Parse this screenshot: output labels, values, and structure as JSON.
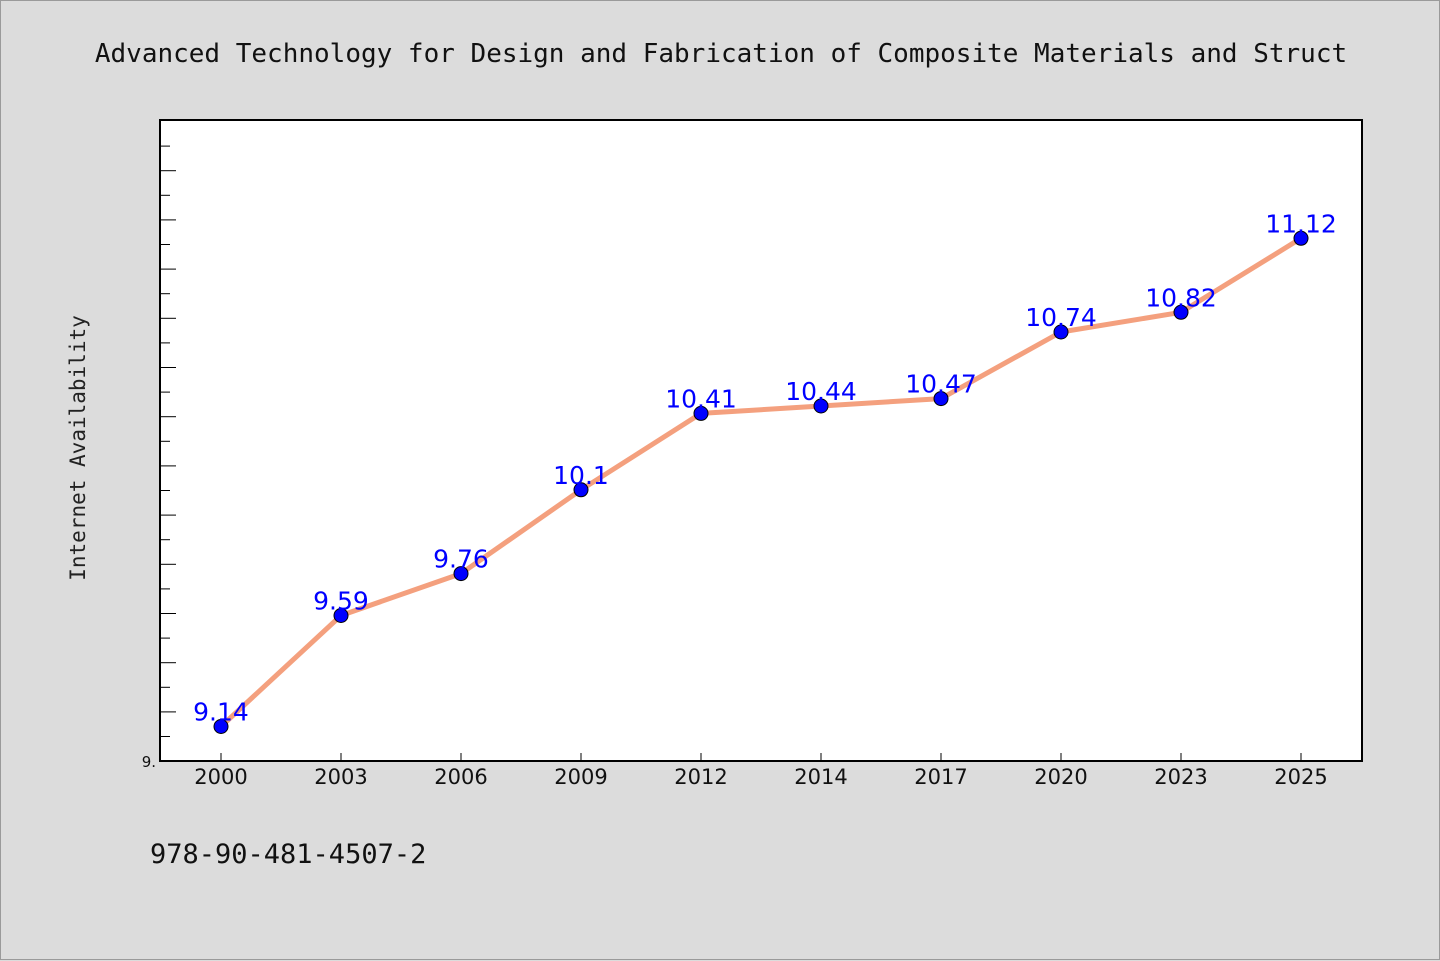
{
  "chart_data": {
    "type": "line",
    "title": "Advanced Technology for Design and Fabrication of Composite Materials and Struct",
    "xlabel": "",
    "ylabel": "Internet Availability",
    "categories": [
      "2000",
      "2003",
      "2006",
      "2009",
      "2012",
      "2014",
      "2017",
      "2020",
      "2023",
      "2025"
    ],
    "series": [
      {
        "values": [
          9.14,
          9.59,
          9.76,
          10.1,
          10.41,
          10.44,
          10.47,
          10.74,
          10.82,
          11.12
        ]
      }
    ],
    "data_labels": [
      "9.14",
      "9.59",
      "9.76",
      "10.1",
      "10.41",
      "10.44",
      "10.47",
      "10.74",
      "10.82",
      "11.12"
    ],
    "ylim": [
      9.0,
      11.6
    ],
    "yticks": [
      {
        "value": 9.0,
        "label": "9."
      }
    ],
    "grid": false,
    "legend": "none"
  },
  "footer": {
    "text": "978-90-481-4507-2"
  },
  "colors": {
    "background": "#dcdcdc",
    "plot_background": "#ffffff",
    "line": "#f4a07e",
    "marker": "#0000ff",
    "data_label": "#0000ff"
  }
}
